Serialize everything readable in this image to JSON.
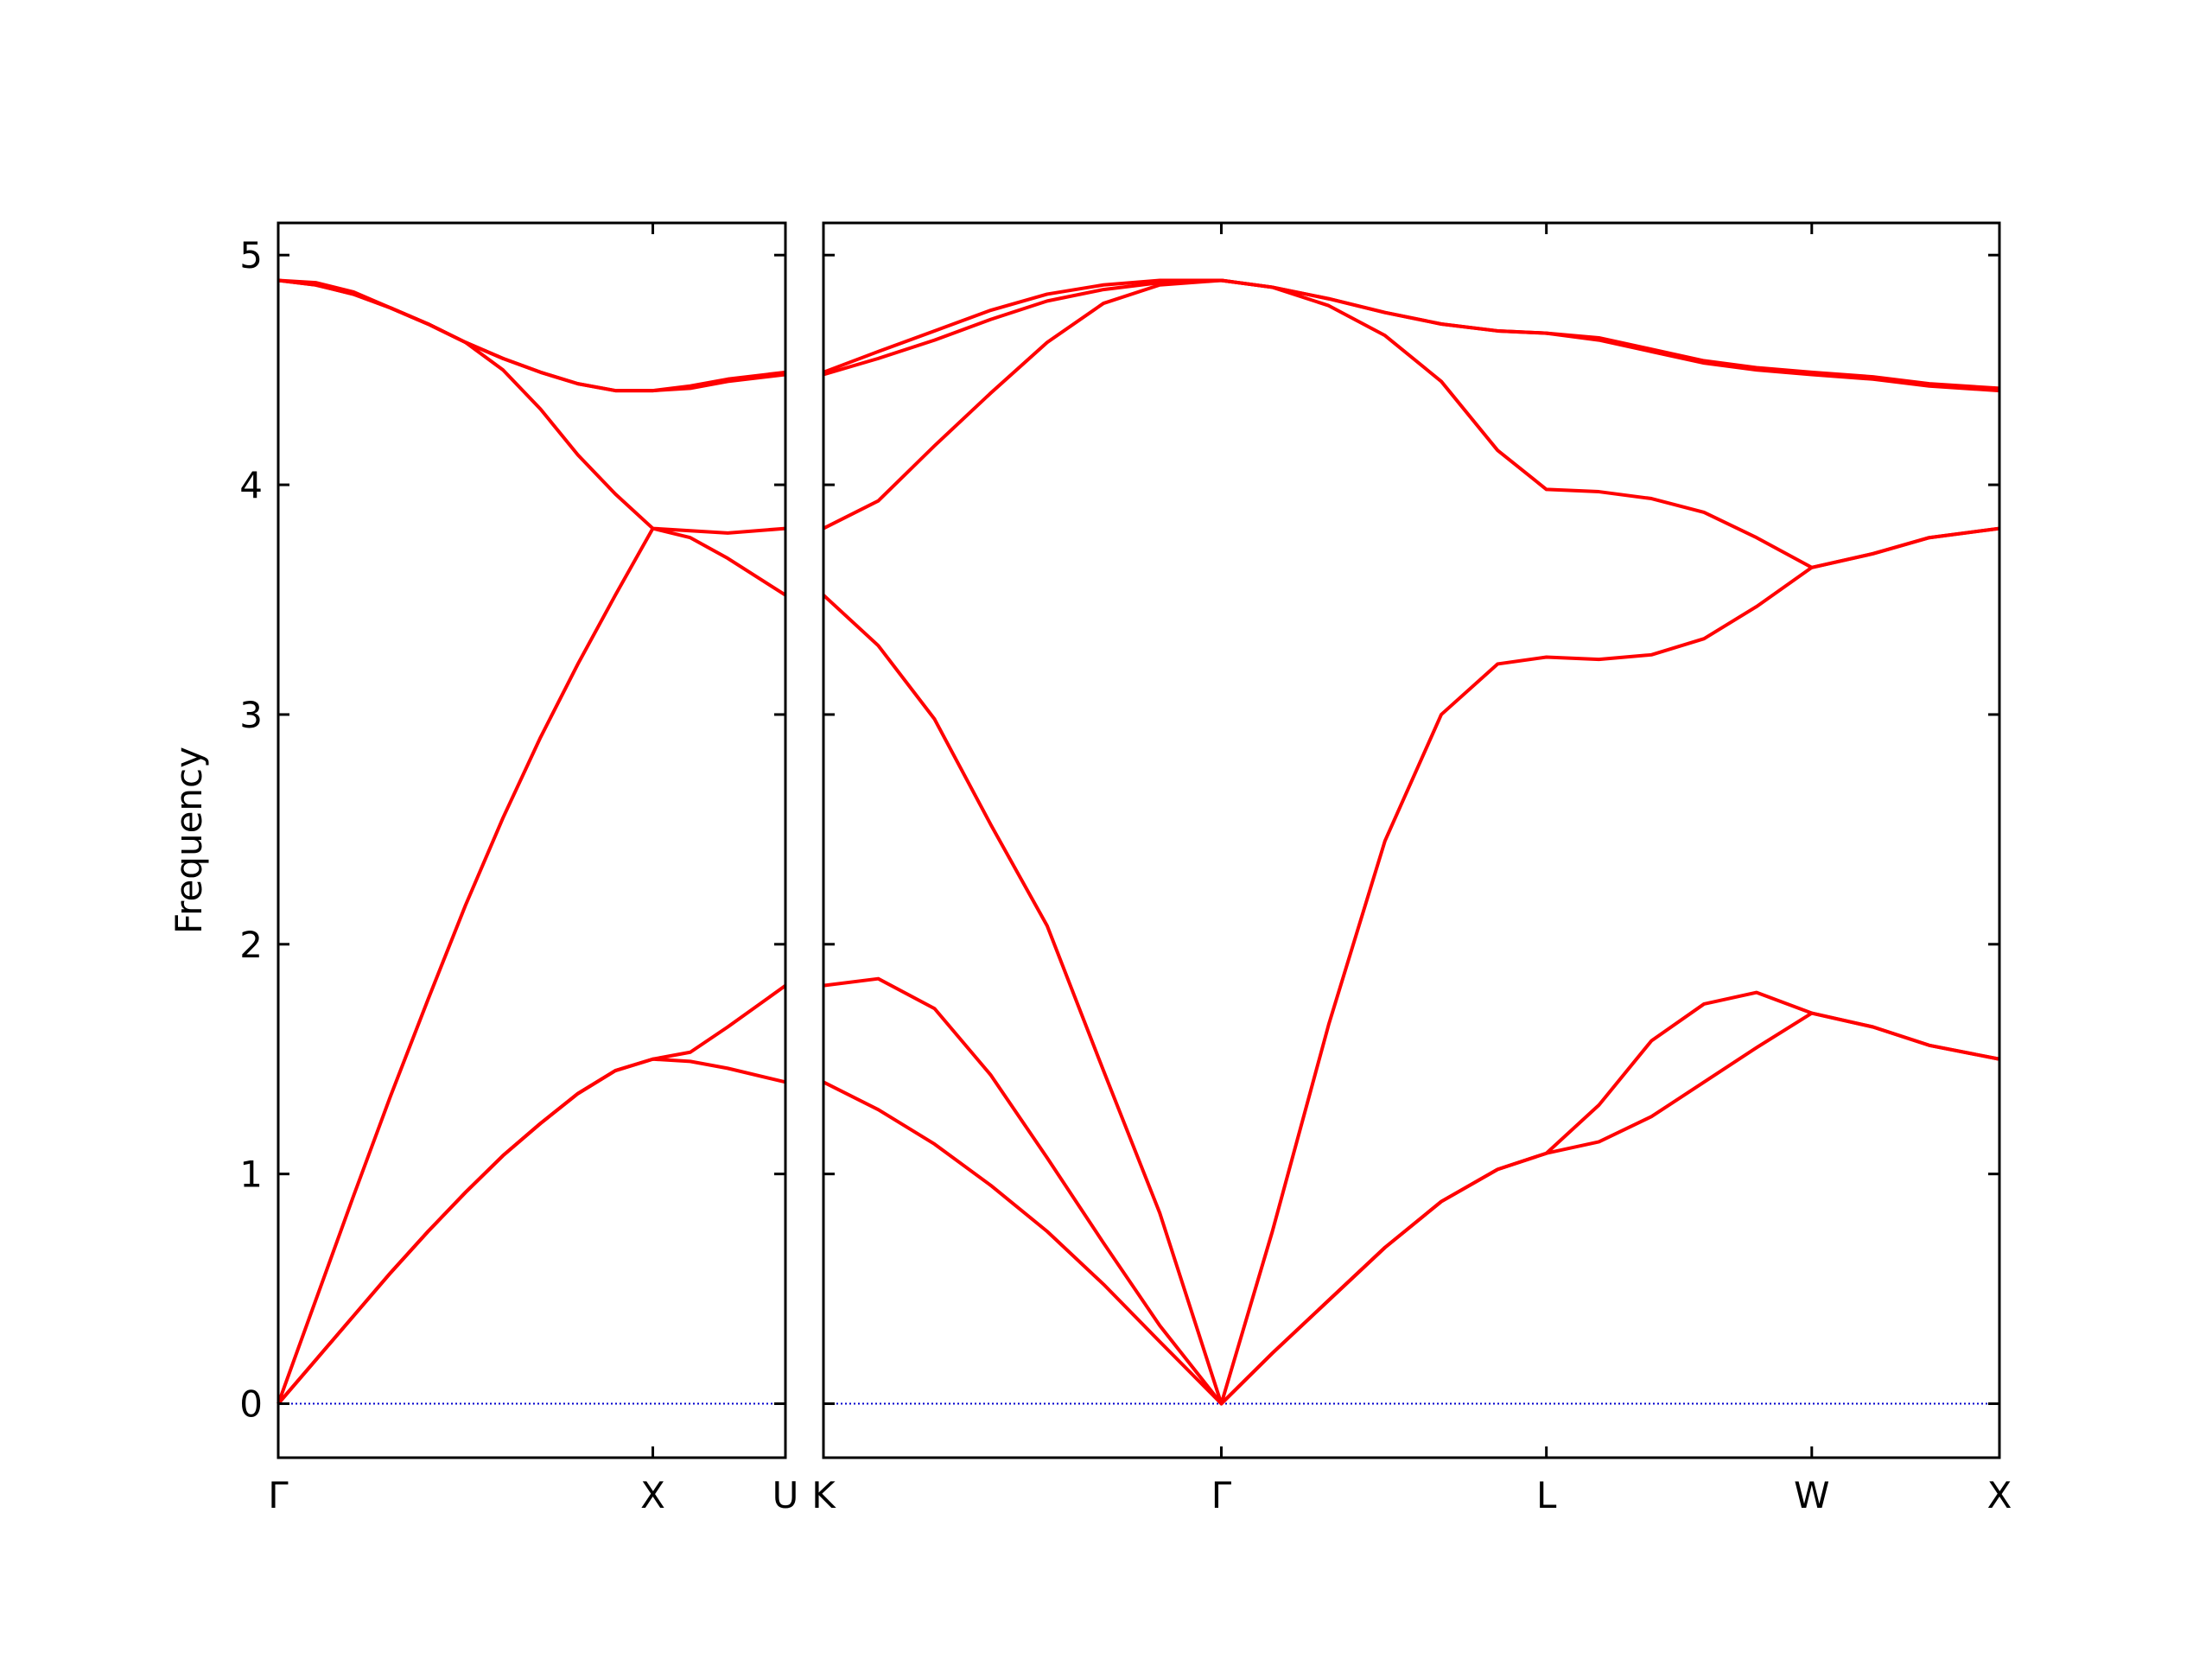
{
  "chart_data": [
    {
      "type": "line",
      "ylabel": "Frequency",
      "x": [
        0,
        0.1,
        0.2,
        0.3,
        0.4,
        0.5,
        0.6,
        0.7,
        0.8,
        0.9,
        1.0,
        1.1,
        1.2,
        1.354
      ],
      "xlim": [
        0,
        1.354
      ],
      "xticks": [
        {
          "value": 0,
          "label": "Γ"
        },
        {
          "value": 1.0,
          "label": "X"
        },
        {
          "value": 1.354,
          "label": "U"
        }
      ],
      "ylim": [
        -0.235,
        5.14
      ],
      "yticks": [
        0,
        1,
        2,
        3,
        4,
        5
      ],
      "hline": {
        "value": 0,
        "color": "#0000cc"
      },
      "series": [
        {
          "color": "#ff0000",
          "values": [
            0,
            0.19,
            0.38,
            0.57,
            0.75,
            0.92,
            1.08,
            1.22,
            1.35,
            1.45,
            1.5,
            1.49,
            1.46,
            1.4
          ]
        },
        {
          "color": "#ff0000",
          "values": [
            0,
            0.19,
            0.38,
            0.57,
            0.75,
            0.92,
            1.08,
            1.22,
            1.35,
            1.45,
            1.5,
            1.53,
            1.64,
            1.82
          ]
        },
        {
          "color": "#ff0000",
          "values": [
            0,
            0.45,
            0.9,
            1.34,
            1.76,
            2.17,
            2.55,
            2.9,
            3.22,
            3.52,
            3.81,
            3.77,
            3.68,
            3.52
          ]
        },
        {
          "color": "#ff0000",
          "values": [
            4.89,
            4.88,
            4.84,
            4.77,
            4.7,
            4.62,
            4.5,
            4.33,
            4.13,
            3.96,
            3.81,
            3.8,
            3.79,
            3.81
          ]
        },
        {
          "color": "#ff0000",
          "values": [
            4.89,
            4.87,
            4.83,
            4.77,
            4.7,
            4.62,
            4.55,
            4.49,
            4.44,
            4.41,
            4.41,
            4.42,
            4.45,
            4.48
          ]
        },
        {
          "color": "#ff0000",
          "values": [
            4.89,
            4.87,
            4.83,
            4.77,
            4.7,
            4.62,
            4.55,
            4.49,
            4.44,
            4.41,
            4.41,
            4.43,
            4.46,
            4.49
          ]
        }
      ]
    },
    {
      "type": "line",
      "x": [
        1.354,
        1.5,
        1.65,
        1.8,
        1.95,
        2.1,
        2.25,
        2.414,
        2.55,
        2.7,
        2.85,
        3.0,
        3.15,
        3.28,
        3.42,
        3.56,
        3.7,
        3.84,
        3.987,
        4.15,
        4.3,
        4.487
      ],
      "xlim": [
        1.354,
        4.487
      ],
      "xticks": [
        {
          "value": 1.354,
          "label": "K"
        },
        {
          "value": 2.414,
          "label": "Γ"
        },
        {
          "value": 3.28,
          "label": "L"
        },
        {
          "value": 3.987,
          "label": "W"
        },
        {
          "value": 4.487,
          "label": "X"
        }
      ],
      "ylim": [
        -0.235,
        5.14
      ],
      "yticks": [
        0,
        1,
        2,
        3,
        4,
        5
      ],
      "hline": {
        "value": 0,
        "color": "#0000cc"
      },
      "series": [
        {
          "color": "#ff0000",
          "values": [
            1.4,
            1.28,
            1.13,
            0.95,
            0.75,
            0.52,
            0.27,
            0,
            0.22,
            0.45,
            0.68,
            0.88,
            1.02,
            1.09,
            1.14,
            1.25,
            1.4,
            1.55,
            1.7,
            1.64,
            1.56,
            1.5
          ]
        },
        {
          "color": "#ff0000",
          "values": [
            1.82,
            1.85,
            1.72,
            1.43,
            1.07,
            0.7,
            0.34,
            0,
            0.22,
            0.45,
            0.68,
            0.88,
            1.02,
            1.09,
            1.3,
            1.58,
            1.74,
            1.79,
            1.7,
            1.64,
            1.56,
            1.5
          ]
        },
        {
          "color": "#ff0000",
          "values": [
            3.52,
            3.3,
            2.98,
            2.52,
            2.08,
            1.45,
            0.83,
            0,
            0.75,
            1.65,
            2.45,
            3.0,
            3.22,
            3.25,
            3.24,
            3.26,
            3.33,
            3.47,
            3.64,
            3.7,
            3.77,
            3.81
          ]
        },
        {
          "color": "#ff0000",
          "values": [
            3.81,
            3.93,
            4.17,
            4.4,
            4.62,
            4.79,
            4.87,
            4.89,
            4.86,
            4.78,
            4.65,
            4.45,
            4.15,
            3.98,
            3.97,
            3.94,
            3.88,
            3.77,
            3.64,
            3.7,
            3.77,
            3.81
          ]
        },
        {
          "color": "#ff0000",
          "values": [
            4.48,
            4.55,
            4.63,
            4.72,
            4.8,
            4.85,
            4.88,
            4.89,
            4.86,
            4.81,
            4.75,
            4.7,
            4.67,
            4.66,
            4.63,
            4.58,
            4.53,
            4.5,
            4.48,
            4.46,
            4.43,
            4.41
          ]
        },
        {
          "color": "#ff0000",
          "values": [
            4.49,
            4.58,
            4.67,
            4.76,
            4.83,
            4.87,
            4.89,
            4.89,
            4.86,
            4.81,
            4.75,
            4.7,
            4.67,
            4.66,
            4.64,
            4.59,
            4.54,
            4.51,
            4.49,
            4.47,
            4.44,
            4.42
          ]
        }
      ]
    }
  ]
}
